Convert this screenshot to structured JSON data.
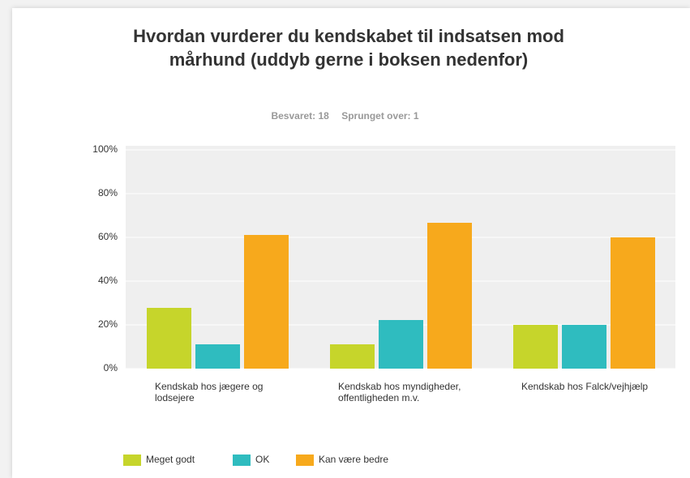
{
  "chart_data": {
    "type": "bar",
    "title": "Hvordan vurderer du kendskabet til indsatsen mod mårhund (uddyb gerne i boksen nedenfor)",
    "stats": [
      "Besvaret: 18",
      "Sprunget over: 1"
    ],
    "categories": [
      "Kendskab hos jægere og lodsejere",
      "Kendskab hos myndigheder, offentligheden m.v.",
      "Kendskab hos Falck/vejhjælp"
    ],
    "series": [
      {
        "name": "Meget godt",
        "color": "#c6d52b",
        "values": [
          27.78,
          11.11,
          20
        ]
      },
      {
        "name": "OK",
        "color": "#2fbcbf",
        "values": [
          11.11,
          22.22,
          20
        ]
      },
      {
        "name": "Kan være bedre",
        "color": "#f7a91c",
        "values": [
          61.11,
          66.67,
          60
        ]
      }
    ],
    "ylim": [
      0,
      100
    ],
    "yticks": [
      {
        "value": 0,
        "label": "0%"
      },
      {
        "value": 20,
        "label": "20%"
      },
      {
        "value": 40,
        "label": "40%"
      },
      {
        "value": 60,
        "label": "60%"
      },
      {
        "value": 80,
        "label": "80%"
      },
      {
        "value": 100,
        "label": "100%"
      }
    ],
    "grid": true
  }
}
